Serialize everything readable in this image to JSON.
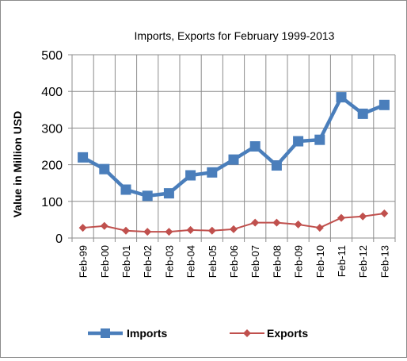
{
  "chart_data": {
    "type": "line",
    "title": "Imports, Exports for February 1999-2013",
    "xlabel": "",
    "ylabel": "Value in  Million  USD",
    "categories": [
      "Feb-99",
      "Feb-00",
      "Feb-01",
      "Feb-02",
      "Feb-03",
      "Feb-04",
      "Feb-05",
      "Feb-06",
      "Feb-07",
      "Feb-08",
      "Feb-09",
      "Feb-10",
      "Feb-11",
      "Feb-12",
      "Feb-13"
    ],
    "ylim": [
      0,
      500
    ],
    "yticks": [
      "0",
      "100",
      "200",
      "300",
      "400",
      "500"
    ],
    "grid": true,
    "legend_position": "bottom",
    "series": [
      {
        "name": "Imports",
        "color": "#4a7ebb",
        "marker": "square",
        "values": [
          220,
          188,
          132,
          115,
          122,
          171,
          179,
          214,
          250,
          198,
          264,
          268,
          384,
          339,
          363
        ]
      },
      {
        "name": "Exports",
        "color": "#c0504d",
        "marker": "diamond",
        "values": [
          28,
          33,
          20,
          17,
          17,
          22,
          20,
          24,
          42,
          42,
          37,
          28,
          55,
          59,
          67
        ]
      }
    ]
  }
}
